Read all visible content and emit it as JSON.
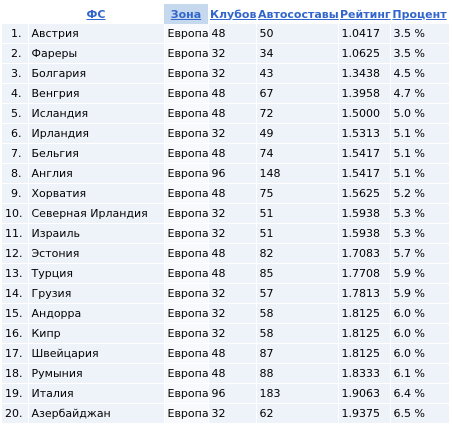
{
  "headers": [
    "ФС",
    "Зона",
    "Клубов",
    "Автосоставы",
    "Рейтинг",
    "Процент"
  ],
  "rows": [
    {
      "n": "1.",
      "fs": "Австрия",
      "zone": "Европа",
      "clubs": "48",
      "cars": "50",
      "rating": "1.0417",
      "pct": "3.5 %"
    },
    {
      "n": "2.",
      "fs": "Фареры",
      "zone": "Европа",
      "clubs": "32",
      "cars": "34",
      "rating": "1.0625",
      "pct": "3.5 %"
    },
    {
      "n": "3.",
      "fs": "Болгария",
      "zone": "Европа",
      "clubs": "32",
      "cars": "43",
      "rating": "1.3438",
      "pct": "4.5 %"
    },
    {
      "n": "4.",
      "fs": "Венгрия",
      "zone": "Европа",
      "clubs": "48",
      "cars": "67",
      "rating": "1.3958",
      "pct": "4.7 %"
    },
    {
      "n": "5.",
      "fs": "Исландия",
      "zone": "Европа",
      "clubs": "48",
      "cars": "72",
      "rating": "1.5000",
      "pct": "5.0 %"
    },
    {
      "n": "6.",
      "fs": "Ирландия",
      "zone": "Европа",
      "clubs": "32",
      "cars": "49",
      "rating": "1.5313",
      "pct": "5.1 %"
    },
    {
      "n": "7.",
      "fs": "Бельгия",
      "zone": "Европа",
      "clubs": "48",
      "cars": "74",
      "rating": "1.5417",
      "pct": "5.1 %"
    },
    {
      "n": "8.",
      "fs": "Англия",
      "zone": "Европа",
      "clubs": "96",
      "cars": "148",
      "rating": "1.5417",
      "pct": "5.1 %"
    },
    {
      "n": "9.",
      "fs": "Хорватия",
      "zone": "Европа",
      "clubs": "48",
      "cars": "75",
      "rating": "1.5625",
      "pct": "5.2 %"
    },
    {
      "n": "10.",
      "fs": "Северная Ирландия",
      "zone": "Европа",
      "clubs": "32",
      "cars": "51",
      "rating": "1.5938",
      "pct": "5.3 %"
    },
    {
      "n": "11.",
      "fs": "Израиль",
      "zone": "Европа",
      "clubs": "32",
      "cars": "51",
      "rating": "1.5938",
      "pct": "5.3 %"
    },
    {
      "n": "12.",
      "fs": "Эстония",
      "zone": "Европа",
      "clubs": "48",
      "cars": "82",
      "rating": "1.7083",
      "pct": "5.7 %"
    },
    {
      "n": "13.",
      "fs": "Турция",
      "zone": "Европа",
      "clubs": "48",
      "cars": "85",
      "rating": "1.7708",
      "pct": "5.9 %"
    },
    {
      "n": "14.",
      "fs": "Грузия",
      "zone": "Европа",
      "clubs": "32",
      "cars": "57",
      "rating": "1.7813",
      "pct": "5.9 %"
    },
    {
      "n": "15.",
      "fs": "Андорра",
      "zone": "Европа",
      "clubs": "32",
      "cars": "58",
      "rating": "1.8125",
      "pct": "6.0 %"
    },
    {
      "n": "16.",
      "fs": "Кипр",
      "zone": "Европа",
      "clubs": "32",
      "cars": "58",
      "rating": "1.8125",
      "pct": "6.0 %"
    },
    {
      "n": "17.",
      "fs": "Швейцария",
      "zone": "Европа",
      "clubs": "48",
      "cars": "87",
      "rating": "1.8125",
      "pct": "6.0 %"
    },
    {
      "n": "18.",
      "fs": "Румыния",
      "zone": "Европа",
      "clubs": "48",
      "cars": "88",
      "rating": "1.8333",
      "pct": "6.1 %"
    },
    {
      "n": "19.",
      "fs": "Италия",
      "zone": "Европа",
      "clubs": "96",
      "cars": "183",
      "rating": "1.9063",
      "pct": "6.4 %"
    },
    {
      "n": "20.",
      "fs": "Азербайджан",
      "zone": "Европа",
      "clubs": "32",
      "cars": "62",
      "rating": "1.9375",
      "pct": "6.5 %"
    }
  ]
}
